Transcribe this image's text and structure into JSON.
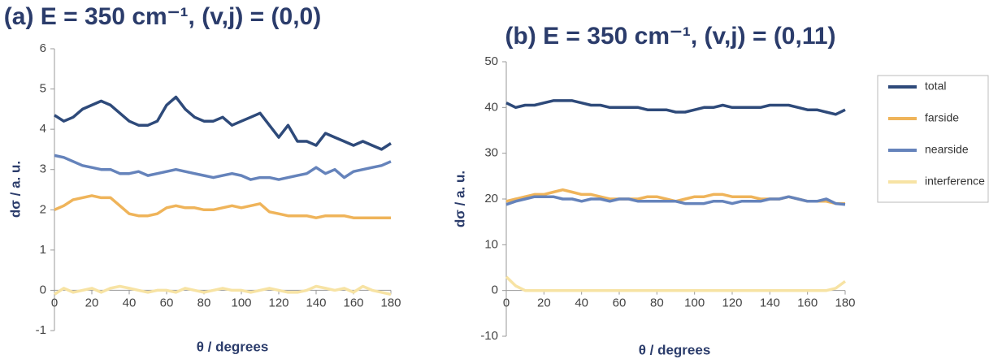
{
  "chart_data": [
    {
      "type": "line",
      "title": "(a)   E = 350 cm⁻¹, (v,j) = (0,0)",
      "x_label": "θ / degrees",
      "y_label": "dσ / a. u.",
      "xlim": [
        0,
        180
      ],
      "xticks": [
        0,
        20,
        40,
        60,
        80,
        100,
        120,
        140,
        160,
        180
      ],
      "ylim": [
        -1,
        6
      ],
      "yticks": [
        -1,
        0,
        1,
        2,
        3,
        4,
        5,
        6
      ],
      "grid": false,
      "x": [
        0,
        5,
        10,
        15,
        20,
        25,
        30,
        35,
        40,
        45,
        50,
        55,
        60,
        65,
        70,
        75,
        80,
        85,
        90,
        95,
        100,
        105,
        110,
        115,
        120,
        125,
        130,
        135,
        140,
        145,
        150,
        155,
        160,
        165,
        170,
        175,
        180
      ],
      "series": [
        {
          "color": "#2e4a7a",
          "values": [
            4.35,
            4.2,
            4.3,
            4.5,
            4.6,
            4.7,
            4.6,
            4.4,
            4.2,
            4.1,
            4.1,
            4.2,
            4.6,
            4.8,
            4.5,
            4.3,
            4.2,
            4.2,
            4.3,
            4.1,
            4.2,
            4.3,
            4.4,
            4.1,
            3.8,
            4.1,
            3.7,
            3.7,
            3.6,
            3.9,
            3.8,
            3.7,
            3.6,
            3.7,
            3.6,
            3.5,
            3.65
          ]
        },
        {
          "color": "#efb45a",
          "values": [
            2.0,
            2.1,
            2.25,
            2.3,
            2.35,
            2.3,
            2.3,
            2.1,
            1.9,
            1.85,
            1.85,
            1.9,
            2.05,
            2.1,
            2.05,
            2.05,
            2.0,
            2.0,
            2.05,
            2.1,
            2.05,
            2.1,
            2.15,
            1.95,
            1.9,
            1.85,
            1.85,
            1.85,
            1.8,
            1.85,
            1.85,
            1.85,
            1.8,
            1.8,
            1.8,
            1.8,
            1.8
          ]
        },
        {
          "color": "#6583bb",
          "values": [
            3.35,
            3.3,
            3.2,
            3.1,
            3.05,
            3.0,
            3.0,
            2.9,
            2.9,
            2.95,
            2.85,
            2.9,
            2.95,
            3.0,
            2.95,
            2.9,
            2.85,
            2.8,
            2.85,
            2.9,
            2.85,
            2.75,
            2.8,
            2.8,
            2.75,
            2.8,
            2.85,
            2.9,
            3.05,
            2.9,
            3.0,
            2.8,
            2.95,
            3.0,
            3.05,
            3.1,
            3.2
          ]
        },
        {
          "color": "#f7e3a4",
          "values": [
            -0.1,
            0.05,
            -0.05,
            0.0,
            0.05,
            -0.05,
            0.05,
            0.1,
            0.05,
            0.0,
            -0.05,
            0.0,
            0.0,
            -0.05,
            0.05,
            0.0,
            -0.05,
            0.0,
            0.05,
            0.0,
            0.0,
            -0.05,
            0.0,
            0.05,
            0.0,
            -0.05,
            -0.05,
            0.0,
            0.1,
            0.05,
            0.0,
            0.05,
            -0.05,
            0.1,
            0.0,
            -0.05,
            -0.1
          ]
        }
      ]
    },
    {
      "type": "line",
      "title": "(b)   E = 350 cm⁻¹, (v,j) = (0,11)",
      "x_label": "θ / degrees",
      "y_label": "dσ / a. u.",
      "xlim": [
        0,
        180
      ],
      "xticks": [
        0,
        20,
        40,
        60,
        80,
        100,
        120,
        140,
        160,
        180
      ],
      "ylim": [
        -10,
        50
      ],
      "yticks": [
        -10,
        0,
        10,
        20,
        30,
        40,
        50
      ],
      "grid": false,
      "legend": "right",
      "x": [
        0,
        5,
        10,
        15,
        20,
        25,
        30,
        35,
        40,
        45,
        50,
        55,
        60,
        65,
        70,
        75,
        80,
        85,
        90,
        95,
        100,
        105,
        110,
        115,
        120,
        125,
        130,
        135,
        140,
        145,
        150,
        155,
        160,
        165,
        170,
        175,
        180
      ],
      "series": [
        {
          "name": "total",
          "color": "#2e4a7a",
          "values": [
            41,
            40,
            40.5,
            40.5,
            41,
            41.5,
            41.5,
            41.5,
            41,
            40.5,
            40.5,
            40,
            40,
            40,
            40,
            39.5,
            39.5,
            39.5,
            39,
            39,
            39.5,
            40,
            40,
            40.5,
            40,
            40,
            40,
            40,
            40.5,
            40.5,
            40.5,
            40,
            39.5,
            39.5,
            39,
            38.5,
            39.5
          ]
        },
        {
          "name": "farside",
          "color": "#efb45a",
          "values": [
            19.5,
            20,
            20.5,
            21,
            21,
            21.5,
            22,
            21.5,
            21,
            21,
            20.5,
            20,
            20,
            20,
            20,
            20.5,
            20.5,
            20,
            19.5,
            20,
            20.5,
            20.5,
            21,
            21,
            20.5,
            20.5,
            20.5,
            20,
            20,
            20,
            20.5,
            20,
            19.5,
            19.5,
            19.5,
            19,
            19
          ]
        },
        {
          "name": "nearside",
          "color": "#6583bb",
          "values": [
            18.8,
            19.5,
            20,
            20.5,
            20.5,
            20.5,
            20,
            20,
            19.5,
            20,
            20,
            19.5,
            20,
            20,
            19.5,
            19.5,
            19.5,
            19.5,
            19.5,
            19,
            19,
            19,
            19.5,
            19.5,
            19,
            19.5,
            19.5,
            19.5,
            20,
            20,
            20.5,
            20,
            19.5,
            19.5,
            20,
            19,
            18.8
          ]
        },
        {
          "name": "interference",
          "color": "#f7e3a4",
          "values": [
            3,
            1,
            0,
            0,
            0,
            0,
            0,
            0,
            0,
            0,
            0,
            0,
            0,
            0,
            0,
            0,
            0,
            0,
            0,
            0,
            0,
            0,
            0,
            0,
            0,
            0,
            0,
            0,
            0,
            0,
            0,
            0,
            0,
            0,
            0,
            0.5,
            2
          ]
        }
      ]
    }
  ]
}
